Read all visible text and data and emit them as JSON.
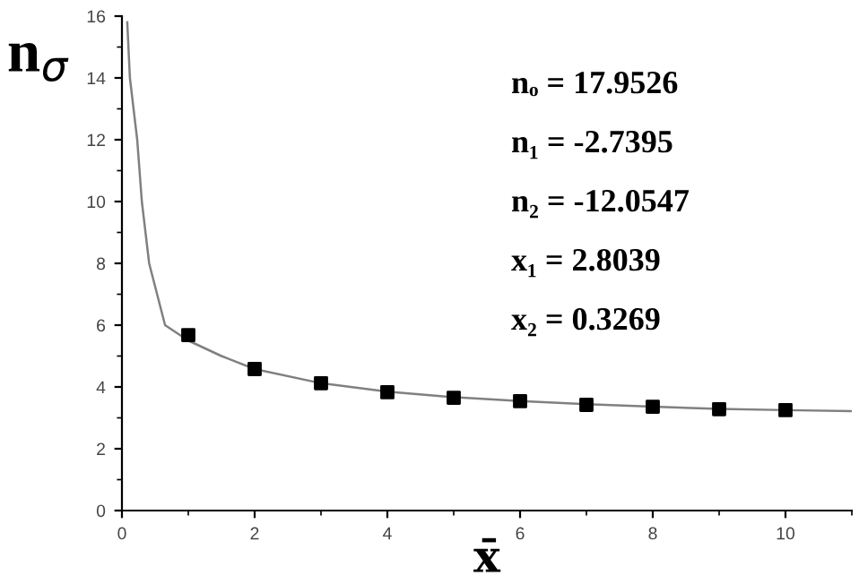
{
  "chart_data": {
    "type": "scatter",
    "ylabel": "n$_{σ}$",
    "xlabel": "x̄",
    "annotations": [
      "nₒ = 17.9526",
      "n₁ = -2.7395",
      "n₂ = -12.0547",
      "x₁ = 2.8039",
      "x₂ = 0.3269"
    ],
    "x": [
      1,
      2,
      3,
      4,
      5,
      6,
      7,
      8,
      9,
      10
    ],
    "series": [
      {
        "color": "#000000",
        "marker": "square",
        "values": [
          5.68,
          4.58,
          4.12,
          3.83,
          3.65,
          3.54,
          3.42,
          3.36,
          3.28,
          3.25
        ]
      },
      {
        "type": "line",
        "color": "#808080",
        "marker": "none",
        "x": [
          0.08,
          0.12,
          0.23,
          0.3,
          0.41,
          0.65,
          1,
          1.5,
          2,
          3,
          4,
          5,
          6,
          7,
          8,
          9,
          10,
          11
        ],
        "values": [
          15.8,
          14,
          12,
          10,
          8,
          6,
          5.5,
          5.0,
          4.58,
          4.12,
          3.85,
          3.67,
          3.54,
          3.44,
          3.36,
          3.29,
          3.25,
          3.22
        ]
      }
    ],
    "xlim": [
      0,
      11
    ],
    "xticks": [
      0,
      2,
      4,
      6,
      8,
      10
    ],
    "ylim": [
      0,
      16
    ],
    "yticks": [
      0,
      2,
      4,
      6,
      8,
      10,
      12,
      14,
      16
    ],
    "grid": false,
    "legend": false
  }
}
